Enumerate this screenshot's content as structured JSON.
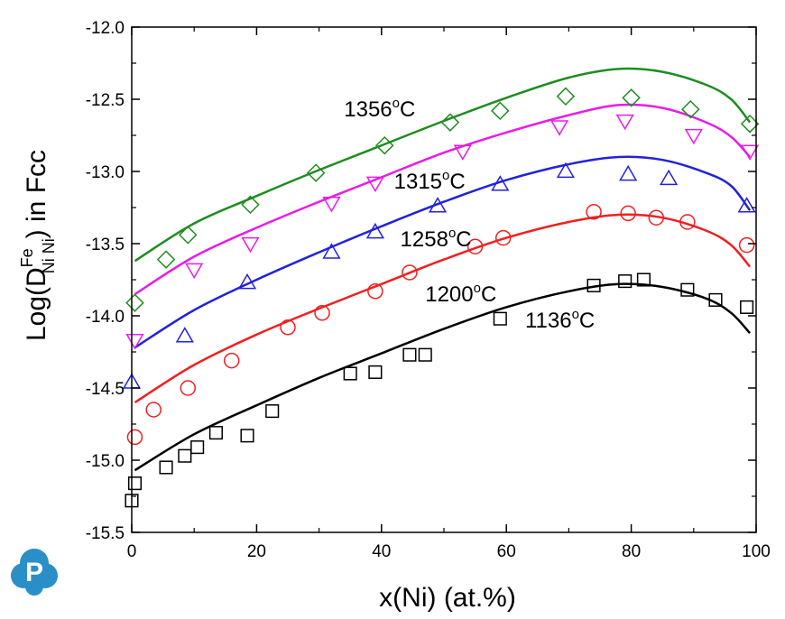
{
  "chart_data": {
    "type": "scatter",
    "title": "",
    "xlabel": "x(Ni) (at.%)",
    "ylabel": {
      "main": "Log(D",
      "sup": "Fe",
      "sub": "Ni Ni",
      "tail": ") in Fcc"
    },
    "xlim": [
      0,
      100
    ],
    "ylim": [
      -15.5,
      -12.0
    ],
    "xticks": [
      "0",
      "20",
      "40",
      "60",
      "80",
      "100"
    ],
    "yticks": [
      "-12.0",
      "-12.5",
      "-13.0",
      "-13.5",
      "-14.0",
      "-14.5",
      "-15.0",
      "-15.5"
    ],
    "grid": false,
    "legend": "none",
    "annotations": [
      {
        "value": "1356",
        "sup": "o",
        "unit": "C",
        "x": 34,
        "y": -12.62
      },
      {
        "value": "1315",
        "sup": "o",
        "unit": "C",
        "x": 42,
        "y": -13.12
      },
      {
        "value": "1258",
        "sup": "o",
        "unit": "C",
        "x": 43,
        "y": -13.52
      },
      {
        "value": "1200",
        "sup": "o",
        "unit": "C",
        "x": 47,
        "y": -13.9
      },
      {
        "value": "1136",
        "sup": "o",
        "unit": "C",
        "x": 63,
        "y": -14.08
      }
    ],
    "series": [
      {
        "temperature": "1356",
        "color": "#1f8c1f",
        "marker": "diamond",
        "points": [
          [
            0.5,
            -13.91
          ],
          [
            5.5,
            -13.61
          ],
          [
            9,
            -13.44
          ],
          [
            19,
            -13.23
          ],
          [
            29.5,
            -13.01
          ],
          [
            40.5,
            -12.82
          ],
          [
            51,
            -12.66
          ],
          [
            59,
            -12.58
          ],
          [
            69.5,
            -12.48
          ],
          [
            80,
            -12.49
          ],
          [
            89.5,
            -12.57
          ],
          [
            99,
            -12.67
          ]
        ],
        "curve": [
          [
            0.5,
            -13.62
          ],
          [
            10,
            -13.36
          ],
          [
            20,
            -13.17
          ],
          [
            30,
            -12.99
          ],
          [
            40,
            -12.82
          ],
          [
            50,
            -12.65
          ],
          [
            60,
            -12.49
          ],
          [
            70,
            -12.35
          ],
          [
            78,
            -12.29
          ],
          [
            85,
            -12.31
          ],
          [
            92,
            -12.4
          ],
          [
            96,
            -12.5
          ],
          [
            99,
            -12.66
          ]
        ]
      },
      {
        "temperature": "1315",
        "color": "#e81ce8",
        "marker": "triangle-down",
        "points": [
          [
            0.5,
            -14.17
          ],
          [
            10,
            -13.68
          ],
          [
            19,
            -13.5
          ],
          [
            32,
            -13.22
          ],
          [
            39,
            -13.08
          ],
          [
            53,
            -12.86
          ],
          [
            68.5,
            -12.69
          ],
          [
            79,
            -12.65
          ],
          [
            90,
            -12.75
          ],
          [
            99,
            -12.86
          ]
        ],
        "curve": [
          [
            0.5,
            -13.85
          ],
          [
            10,
            -13.59
          ],
          [
            20,
            -13.39
          ],
          [
            30,
            -13.21
          ],
          [
            40,
            -13.04
          ],
          [
            50,
            -12.87
          ],
          [
            60,
            -12.73
          ],
          [
            70,
            -12.61
          ],
          [
            78,
            -12.54
          ],
          [
            85,
            -12.56
          ],
          [
            92,
            -12.66
          ],
          [
            96,
            -12.76
          ],
          [
            99,
            -12.9
          ]
        ]
      },
      {
        "temperature": "1258",
        "color": "#2222dd",
        "marker": "triangle-up",
        "points": [
          [
            0,
            -14.46
          ],
          [
            8.5,
            -14.14
          ],
          [
            18.5,
            -13.77
          ],
          [
            32,
            -13.56
          ],
          [
            39,
            -13.42
          ],
          [
            49,
            -13.24
          ],
          [
            59,
            -13.09
          ],
          [
            69.5,
            -13.0
          ],
          [
            79.5,
            -13.02
          ],
          [
            86,
            -13.05
          ],
          [
            98.5,
            -13.24
          ]
        ],
        "curve": [
          [
            0.5,
            -14.22
          ],
          [
            10,
            -13.96
          ],
          [
            20,
            -13.75
          ],
          [
            30,
            -13.56
          ],
          [
            40,
            -13.38
          ],
          [
            50,
            -13.21
          ],
          [
            60,
            -13.06
          ],
          [
            70,
            -12.95
          ],
          [
            78,
            -12.9
          ],
          [
            85,
            -12.92
          ],
          [
            92,
            -13.01
          ],
          [
            96,
            -13.1
          ],
          [
            99,
            -13.27
          ]
        ]
      },
      {
        "temperature": "1200",
        "color": "#f02020",
        "marker": "circle",
        "points": [
          [
            0.5,
            -14.84
          ],
          [
            3.5,
            -14.65
          ],
          [
            9,
            -14.5
          ],
          [
            16,
            -14.31
          ],
          [
            25,
            -14.08
          ],
          [
            30.5,
            -13.98
          ],
          [
            39,
            -13.83
          ],
          [
            44.5,
            -13.7
          ],
          [
            55,
            -13.52
          ],
          [
            59.5,
            -13.46
          ],
          [
            74,
            -13.28
          ],
          [
            79.5,
            -13.29
          ],
          [
            84,
            -13.32
          ],
          [
            89,
            -13.35
          ],
          [
            98.5,
            -13.51
          ]
        ],
        "curve": [
          [
            0.5,
            -14.6
          ],
          [
            10,
            -14.34
          ],
          [
            20,
            -14.13
          ],
          [
            30,
            -13.95
          ],
          [
            40,
            -13.78
          ],
          [
            50,
            -13.61
          ],
          [
            60,
            -13.46
          ],
          [
            70,
            -13.35
          ],
          [
            78,
            -13.3
          ],
          [
            85,
            -13.32
          ],
          [
            92,
            -13.41
          ],
          [
            96,
            -13.51
          ],
          [
            99,
            -13.66
          ]
        ]
      },
      {
        "temperature": "1136",
        "color": "#000000",
        "marker": "square",
        "points": [
          [
            0,
            -15.28
          ],
          [
            0.5,
            -15.16
          ],
          [
            5.5,
            -15.05
          ],
          [
            8.5,
            -14.97
          ],
          [
            10.5,
            -14.91
          ],
          [
            13.5,
            -14.81
          ],
          [
            18.5,
            -14.83
          ],
          [
            22.5,
            -14.66
          ],
          [
            35,
            -14.4
          ],
          [
            39,
            -14.39
          ],
          [
            44.5,
            -14.27
          ],
          [
            47,
            -14.27
          ],
          [
            59,
            -14.02
          ],
          [
            74,
            -13.79
          ],
          [
            79,
            -13.76
          ],
          [
            82,
            -13.75
          ],
          [
            89,
            -13.82
          ],
          [
            93.5,
            -13.89
          ],
          [
            98.5,
            -13.94
          ]
        ],
        "curve": [
          [
            0.5,
            -15.07
          ],
          [
            10,
            -14.82
          ],
          [
            20,
            -14.62
          ],
          [
            30,
            -14.43
          ],
          [
            40,
            -14.26
          ],
          [
            50,
            -14.09
          ],
          [
            60,
            -13.94
          ],
          [
            70,
            -13.83
          ],
          [
            78,
            -13.78
          ],
          [
            85,
            -13.8
          ],
          [
            92,
            -13.88
          ],
          [
            96,
            -13.98
          ],
          [
            99,
            -14.12
          ]
        ]
      }
    ]
  },
  "logo": {
    "letter": "P",
    "color": "#2a8fc7"
  }
}
